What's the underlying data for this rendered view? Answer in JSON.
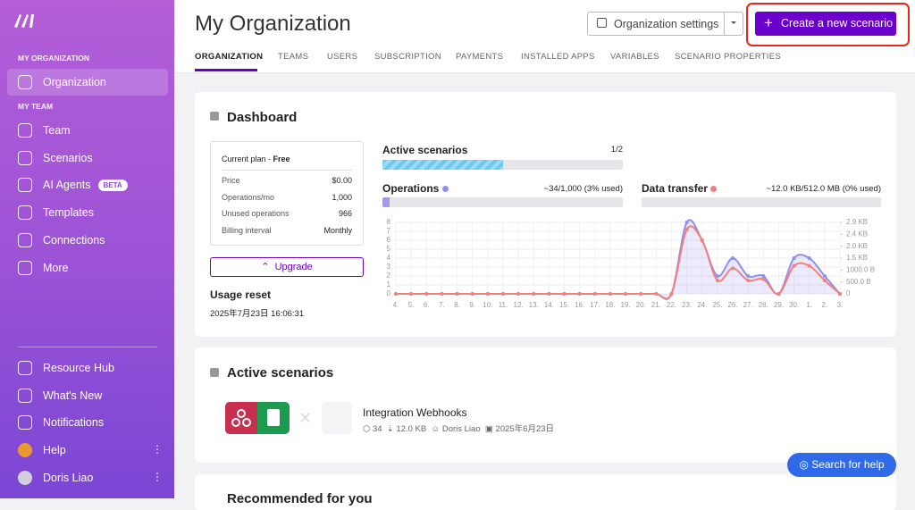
{
  "sidebar": {
    "org_label": "MY ORGANIZATION",
    "org_item": "Organization",
    "team_label": "MY TEAM",
    "items": [
      "Team",
      "Scenarios",
      "AI Agents",
      "Templates",
      "Connections",
      "More"
    ],
    "beta": "BETA",
    "bottom": [
      "Resource Hub",
      "What's New",
      "Notifications",
      "Help",
      "Doris Liao"
    ]
  },
  "header": {
    "title": "My Organization",
    "settings": "Organization settings",
    "create": "Create a new scenario"
  },
  "tabs": [
    "ORGANIZATION",
    "TEAMS",
    "USERS",
    "SUBSCRIPTION",
    "PAYMENTS",
    "INSTALLED APPS",
    "VARIABLES",
    "SCENARIO PROPERTIES"
  ],
  "dashboard": {
    "title": "Dashboard",
    "plan": {
      "label": "Current plan - ",
      "name": "Free",
      "rows": [
        [
          "Price",
          "$0.00"
        ],
        [
          "Operations/mo",
          "1,000"
        ],
        [
          "Unused operations",
          "966"
        ],
        [
          "Billing interval",
          "Monthly"
        ]
      ]
    },
    "upgrade": "Upgrade",
    "usage_reset": "Usage reset",
    "reset_date": "2025年7月23日 16:06:31",
    "active": {
      "label": "Active scenarios",
      "used": 1,
      "total": 2,
      "value_label": "1/2"
    },
    "operations": {
      "percent": 3,
      "value_label": "~34/1,000 (3% used)"
    },
    "transfer": {
      "percent": 0,
      "value_label": "~12.0 KB/512.0 MB (0% used)"
    }
  },
  "chart_data": {
    "type": "line",
    "x": [
      "4.",
      "5.",
      "6.",
      "7.",
      "8.",
      "9.",
      "10.",
      "11.",
      "12.",
      "13.",
      "14.",
      "15.",
      "16.",
      "17.",
      "18.",
      "19.",
      "20.",
      "21.",
      "22.",
      "23.",
      "24.",
      "25.",
      "26.",
      "27.",
      "28.",
      "29.",
      "30.",
      "1.",
      "2.",
      "3."
    ],
    "series": [
      {
        "name": "Operations",
        "color": "#8f8ff2",
        "values": [
          0,
          0,
          0,
          0,
          0,
          0,
          0,
          0,
          0,
          0,
          0,
          0,
          0,
          0,
          0,
          0,
          0,
          0,
          0,
          8,
          6,
          2,
          4,
          2,
          2,
          0,
          4,
          4,
          2,
          0
        ]
      },
      {
        "name": "Data transfer",
        "color": "#f47f7a",
        "axis": "y2",
        "values": [
          0,
          0,
          0,
          0,
          0,
          0,
          0,
          0,
          0,
          0,
          0,
          0,
          0,
          0,
          0,
          0,
          0,
          0,
          0,
          2640,
          2200,
          550,
          1050,
          550,
          600,
          0,
          1150,
          1150,
          550,
          0
        ]
      }
    ],
    "ylim": [
      0,
      8
    ],
    "yticks": [
      0,
      1,
      2,
      3,
      4,
      5,
      6,
      7,
      8
    ],
    "y2lim": [
      0,
      2932
    ],
    "y2ticks": [
      0,
      {
        "value": 489,
        "label": "500.0 B"
      },
      {
        "value": 977,
        "label": "1000.0 B"
      },
      {
        "value": 1466,
        "label": "1.5 KB"
      },
      {
        "value": 1954,
        "label": "2.0 KB"
      },
      {
        "value": 2443,
        "label": "2.4 KB"
      },
      {
        "value": 2932,
        "label": "2.9 KB"
      }
    ]
  },
  "scenarios": {
    "title": "Active scenarios",
    "items": [
      {
        "name": "Integration Webhooks",
        "operations": "34",
        "transfer": "12.0 KB",
        "owner": "Doris Liao",
        "date": "2025年6月23日"
      }
    ]
  },
  "recommended": "Recommended for you",
  "help": "Search for help"
}
